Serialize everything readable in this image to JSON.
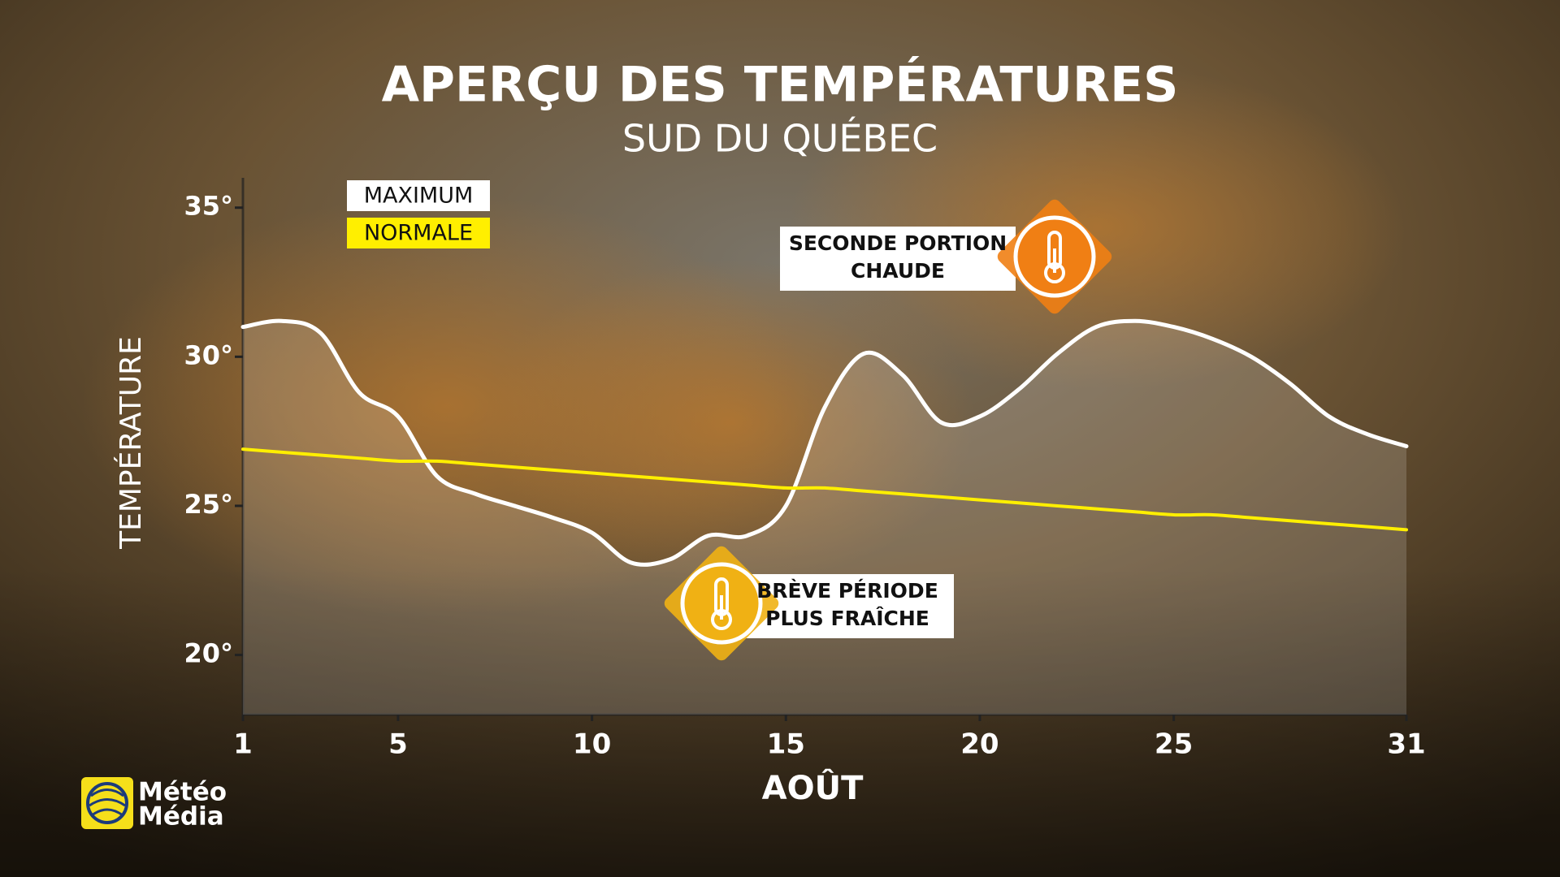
{
  "chart_data": {
    "type": "line",
    "title": "APERÇU DES TEMPÉRATURES",
    "subtitle": "SUD DU QUÉBEC",
    "x_label": "AOÛT",
    "y_label": "TEMPÉRATURE",
    "x": [
      1,
      2,
      3,
      4,
      5,
      6,
      7,
      8,
      9,
      10,
      11,
      12,
      13,
      14,
      15,
      16,
      17,
      18,
      19,
      20,
      21,
      22,
      23,
      24,
      25,
      26,
      27,
      28,
      29,
      30,
      31
    ],
    "xlim": [
      1,
      31
    ],
    "xticks": [
      1,
      5,
      10,
      15,
      20,
      25,
      31
    ],
    "ylim": [
      18,
      36
    ],
    "yticks": [
      {
        "value": 20,
        "label": "20°"
      },
      {
        "value": 25,
        "label": "25°"
      },
      {
        "value": 30,
        "label": "30°"
      },
      {
        "value": 35,
        "label": "35°"
      }
    ],
    "series": [
      {
        "name": "MAXIMUM",
        "color": "#ffffff",
        "values": [
          31.0,
          31.2,
          30.8,
          28.8,
          28.0,
          26.0,
          25.4,
          25.0,
          24.6,
          24.1,
          23.1,
          23.2,
          24.0,
          24.0,
          25.0,
          28.3,
          30.1,
          29.4,
          27.8,
          28.0,
          28.9,
          30.1,
          31.0,
          31.2,
          31.0,
          30.6,
          30.0,
          29.1,
          28.0,
          27.4,
          27.0
        ]
      },
      {
        "name": "NORMALE",
        "color": "#ffef00",
        "values": [
          26.9,
          26.8,
          26.7,
          26.6,
          26.5,
          26.5,
          26.4,
          26.3,
          26.2,
          26.1,
          26.0,
          25.9,
          25.8,
          25.7,
          25.6,
          25.6,
          25.5,
          25.4,
          25.3,
          25.2,
          25.1,
          25.0,
          24.9,
          24.8,
          24.7,
          24.7,
          24.6,
          24.5,
          24.4,
          24.3,
          24.2
        ]
      }
    ],
    "annotations": [
      {
        "text": [
          "SECONDE PORTION",
          "CHAUDE"
        ],
        "color": "#f07f14"
      },
      {
        "text": [
          "BRÈVE PÉRIODE",
          "PLUS FRAÎCHE"
        ],
        "color": "#f0b114"
      }
    ],
    "logo": [
      "Météo",
      "Média"
    ]
  }
}
